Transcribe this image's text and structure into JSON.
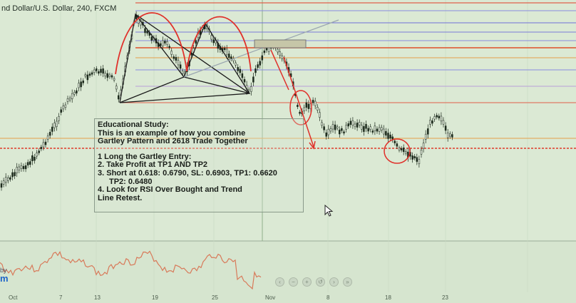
{
  "chart": {
    "symbol_title": "nd Dollar/U.S. Dollar, 240, FXCM",
    "x_ticks": [
      "Oct",
      "7",
      "13",
      "19",
      "25",
      "Nov",
      "8",
      "18",
      "23"
    ],
    "colors": {
      "background": "#dbe9d4",
      "candles": "#1c2a1c",
      "pattern_line": "#1a1a1a",
      "arcs": "#e0302a",
      "fib_red": "#e0604a",
      "fib_blue": "#6f6fd8",
      "fib_orange": "#e6a04a",
      "rsi": "#d87a5a"
    }
  },
  "note": {
    "title": "Educational Study:",
    "line1": "This is an example of how you combine",
    "line2": "Gartley Pattern and 2618 Trade Together",
    "item1": "1 Long the Gartley Entry:",
    "item2": "2. Take Profit at TP1 AND TP2",
    "item3": "3. Short at 0.618: 0.6790, SL: 0.6903, TP1: 0.6620",
    "item3b": "TP2: 0.6480",
    "item4": "4. Look for RSI Over Bought and Trend",
    "item4b": "Line Retest."
  },
  "branding": {
    "small": "by",
    "mark": "m"
  },
  "nav": {
    "prev_symbol": "‹",
    "next_symbol": "›",
    "zoom_in_symbol": "+",
    "zoom_out_symbol": "−",
    "reset_symbol": "↺",
    "last_symbol": "»"
  }
}
